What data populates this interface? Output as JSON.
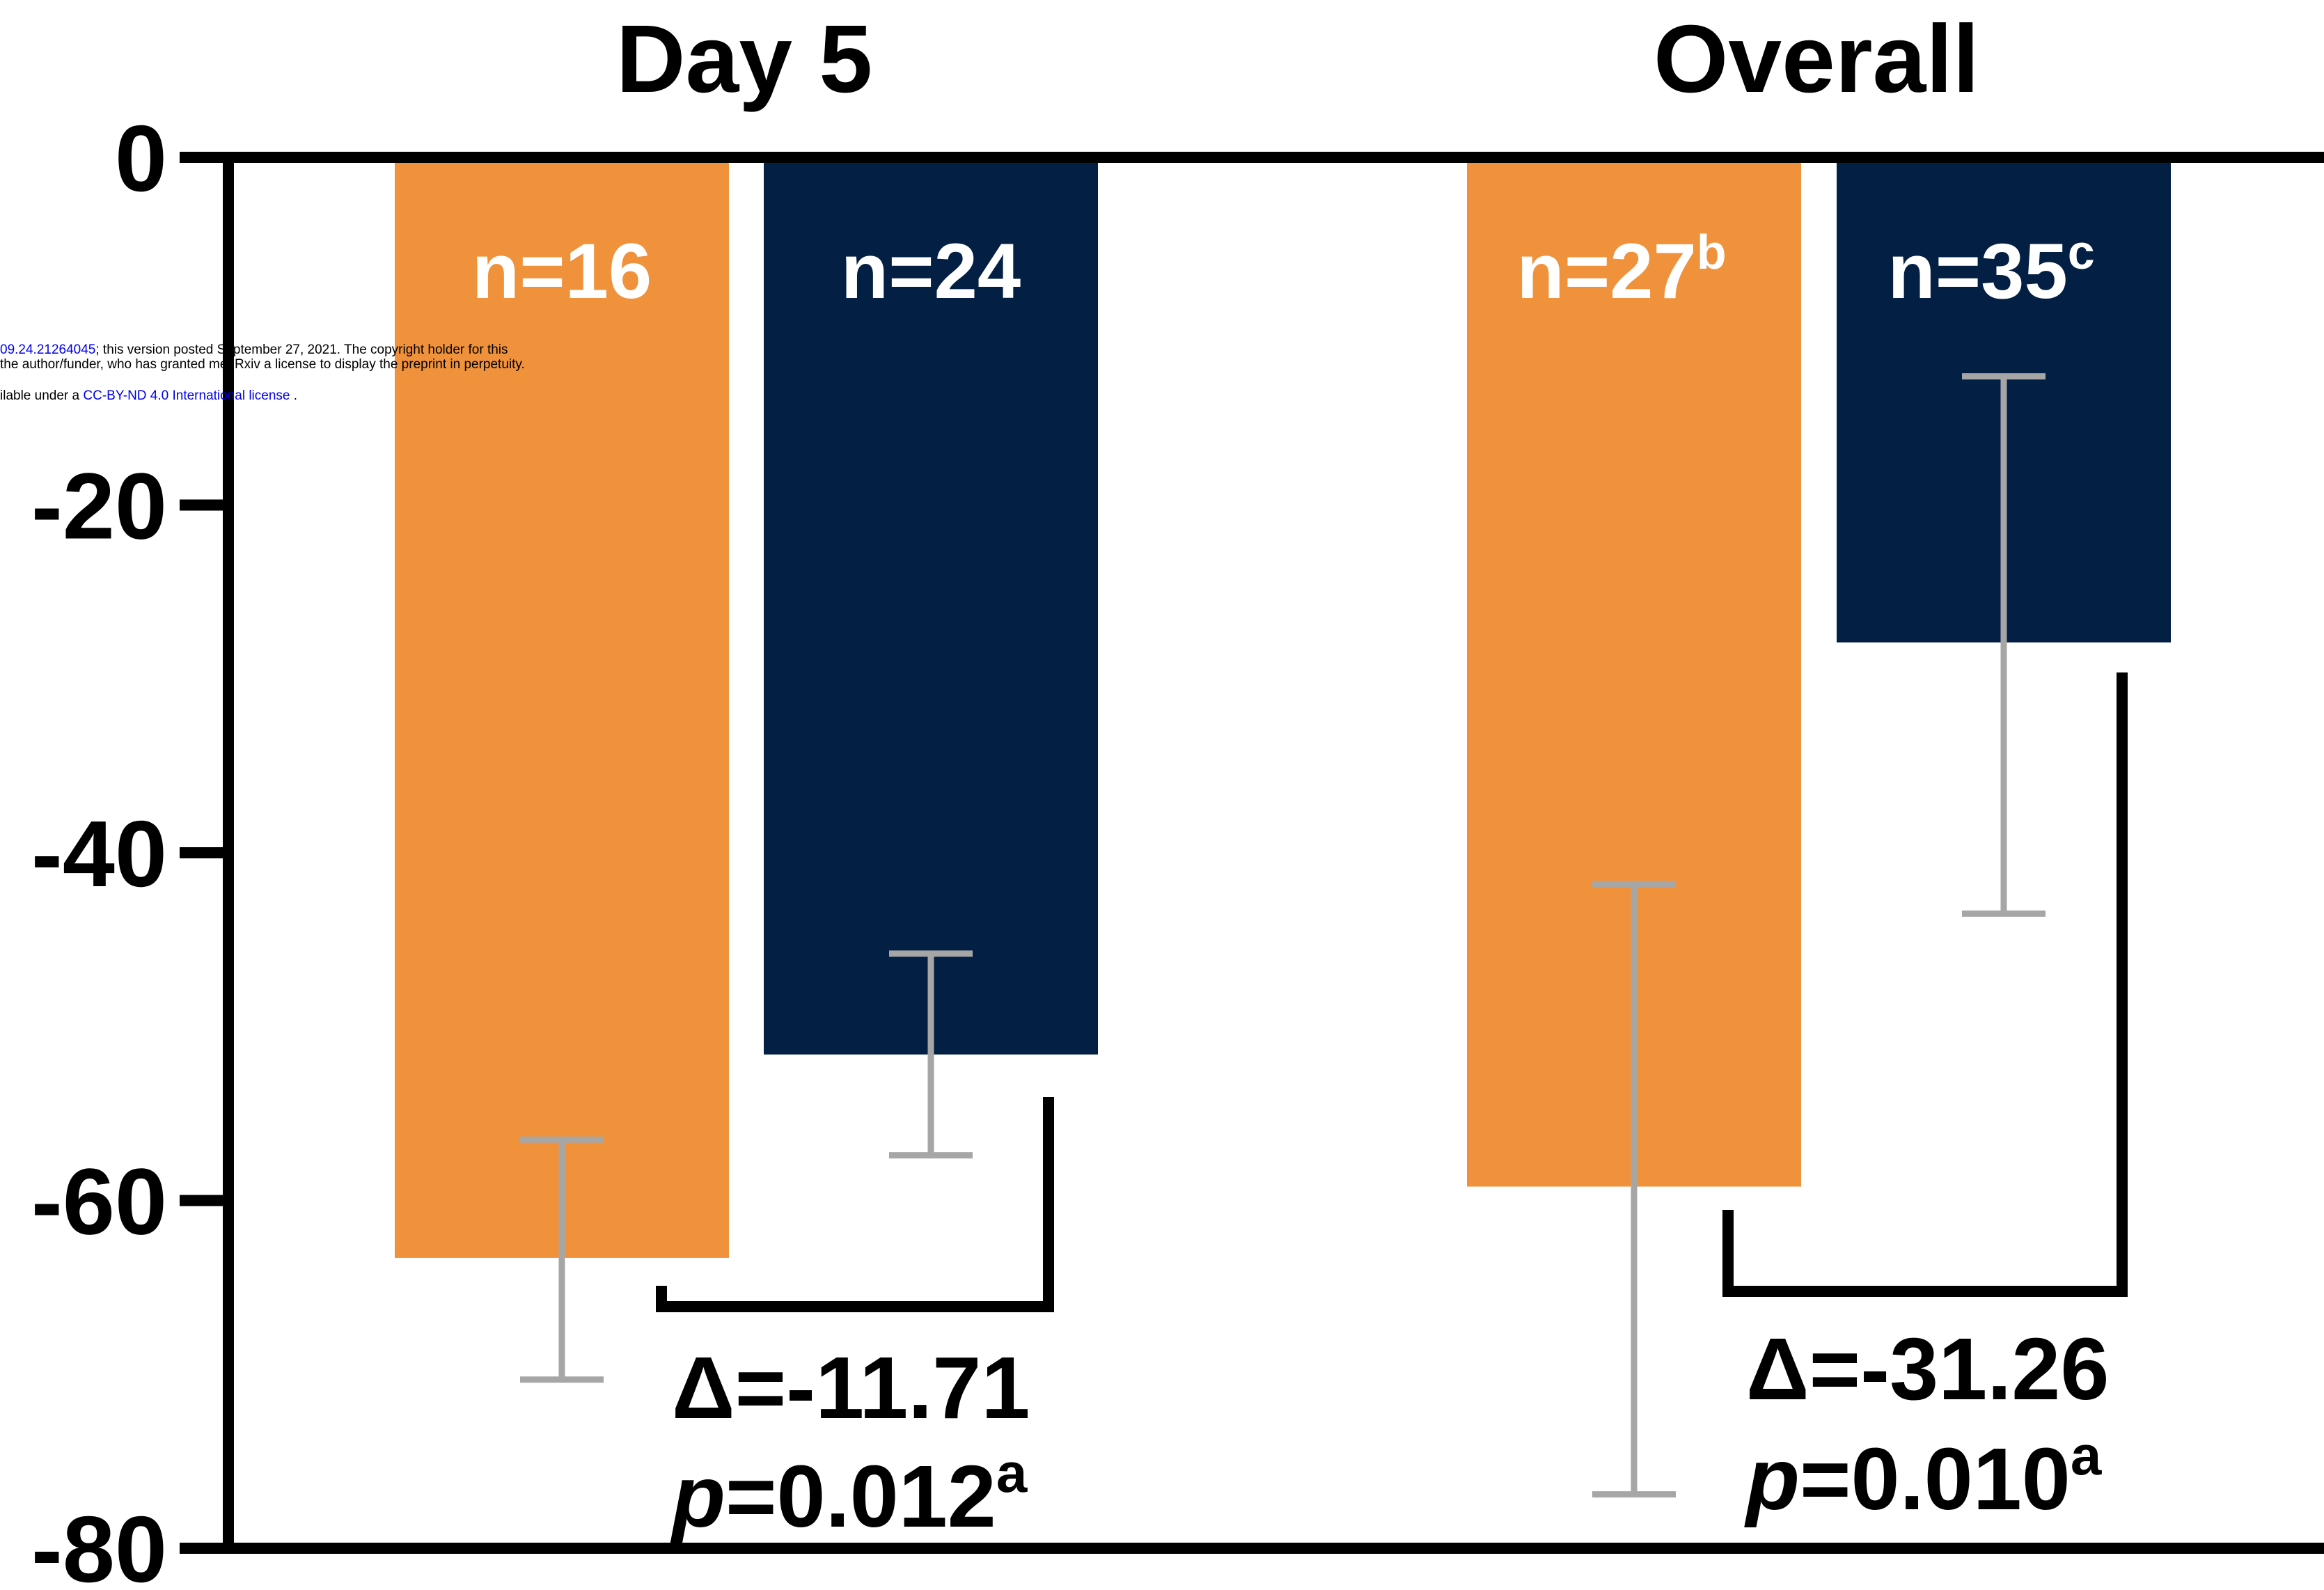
{
  "chart_data": {
    "type": "bar",
    "groups": [
      "Day 5",
      "Overall"
    ],
    "series": [
      {
        "color": "#f0923c",
        "values": [
          -63.3,
          -59.2
        ],
        "error_low": [
          -70.3,
          -76.9
        ],
        "error_high": [
          -56.5,
          -41.8
        ],
        "n_labels": [
          {
            "text": "n=16",
            "sup": ""
          },
          {
            "text": "n=27",
            "sup": "b"
          }
        ]
      },
      {
        "color": "#041f44",
        "values": [
          -51.6,
          -27.9
        ],
        "error_low": [
          -57.4,
          -43.5
        ],
        "error_high": [
          -45.8,
          -12.6
        ],
        "n_labels": [
          {
            "text": "n=24",
            "sup": ""
          },
          {
            "text": "n=35",
            "sup": "c"
          }
        ]
      }
    ],
    "comparisons": [
      {
        "delta": "Δ=-11.71",
        "p_symbol": "p",
        "p_value": "=0.012",
        "p_sup": "a"
      },
      {
        "delta": "Δ=-31.26",
        "p_symbol": "p",
        "p_value": "=0.010",
        "p_sup": "a"
      }
    ],
    "ylim": [
      -80,
      0
    ],
    "yticks": [
      "0",
      "-20",
      "-40",
      "-60",
      "-80"
    ],
    "error_bar_color": "#a6a6a6",
    "title": "",
    "xlabel": "",
    "ylabel": ""
  },
  "watermark": {
    "line1_link": "09.24.21264045",
    "line1_text": "; this version posted September 27, 2021. The copyright holder for this",
    "line2_text": "the author/funder, who has granted medRxiv a license to display the preprint in perpetuity.",
    "line3_text": "ilable under a ",
    "line3_link": "CC-BY-ND 4.0 International license",
    "line3_end": " ."
  }
}
